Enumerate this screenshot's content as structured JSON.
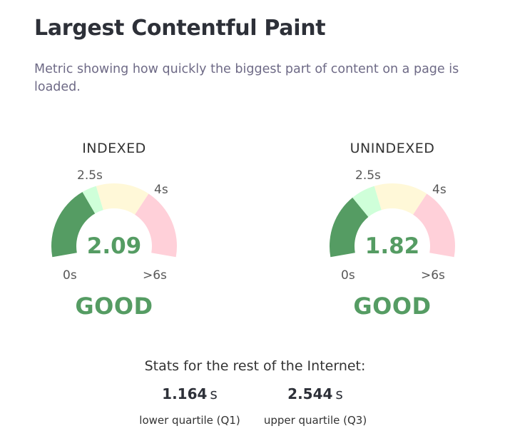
{
  "title": "Largest Contentful Paint",
  "description": "Metric showing how quickly the biggest part of content on a page is loaded.",
  "colors": {
    "good": "#559c63",
    "good_light": "#cfffd9",
    "needs_improvement": "#fff8d8",
    "poor": "#ffd0d9"
  },
  "gauges": [
    {
      "label": "INDEXED",
      "value": "2.09",
      "status": "GOOD",
      "value_seconds": 2.09,
      "ticks": {
        "min": "0s",
        "good_threshold": "2.5s",
        "poor_threshold": "4s",
        "max": ">6s"
      }
    },
    {
      "label": "UNINDEXED",
      "value": "1.82",
      "status": "GOOD",
      "value_seconds": 1.82,
      "ticks": {
        "min": "0s",
        "good_threshold": "2.5s",
        "poor_threshold": "4s",
        "max": ">6s"
      }
    }
  ],
  "stats": {
    "title": "Stats for the rest of the Internet:",
    "lower": {
      "value": "1.164",
      "unit": "s",
      "label": "lower quartile (Q1)"
    },
    "upper": {
      "value": "2.544",
      "unit": "s",
      "label": "upper quartile (Q3)"
    }
  }
}
